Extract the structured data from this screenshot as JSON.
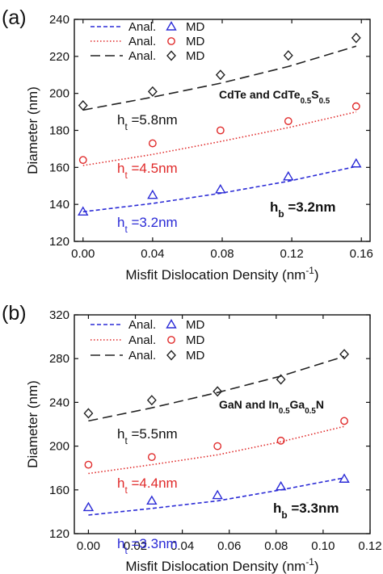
{
  "chart_data": [
    {
      "panel_label": "(a)",
      "type": "scatter",
      "xlabel": "Misfit Dislocation Density (nm",
      "xlabel_sup": "-1",
      "xlabel_end": ")",
      "ylabel": "Diameter (nm)",
      "xlim": [
        -0.005,
        0.165
      ],
      "ylim": [
        120,
        240
      ],
      "xticks": [
        0,
        0.04,
        0.08,
        0.12,
        0.16
      ],
      "xtick_labels": [
        "0.00",
        "0.04",
        "0.08",
        "0.12",
        "0.16"
      ],
      "yticks": [
        120,
        140,
        160,
        180,
        200,
        220,
        240
      ],
      "ytick_labels": [
        "120",
        "140",
        "160",
        "180",
        "200",
        "220",
        "240"
      ],
      "legend": [
        {
          "line_label": "Anal.",
          "marker_label": "MD",
          "color": "#2b2bd6",
          "dash": "5,3",
          "marker": "triangle"
        },
        {
          "line_label": "Anal.",
          "marker_label": "MD",
          "color": "#e02a2a",
          "dash": "1.5,2.5",
          "marker": "circle"
        },
        {
          "line_label": "Anal.",
          "marker_label": "MD",
          "color": "#222222",
          "dash": "12,6",
          "marker": "diamond"
        }
      ],
      "material": {
        "a": "CdTe and CdTe",
        "b": "0.5",
        "c": "S",
        "d": "0.5"
      },
      "hb": {
        "main": "h",
        "sub": "b",
        "rest": " =3.2nm"
      },
      "series": [
        {
          "color": "#222222",
          "dash": "12,6",
          "marker": "diamond",
          "ht_main": "h",
          "ht_sub": "t",
          "ht_rest": " =5.8nm",
          "x": [
            0,
            0.04,
            0.079,
            0.118,
            0.157
          ],
          "md": [
            193.5,
            201,
            210,
            220.5,
            230
          ],
          "anal_x": [
            0,
            0.04,
            0.079,
            0.118,
            0.157
          ],
          "anal_y": [
            191,
            198,
            205.5,
            214.5,
            225.5
          ]
        },
        {
          "color": "#e02a2a",
          "dash": "1.5,2.5",
          "marker": "circle",
          "ht_main": "h",
          "ht_sub": "t",
          "ht_rest": " =4.5nm",
          "x": [
            0,
            0.04,
            0.079,
            0.118,
            0.157
          ],
          "md": [
            164,
            173,
            180,
            185,
            193
          ],
          "anal_x": [
            0,
            0.04,
            0.079,
            0.118,
            0.157
          ],
          "anal_y": [
            161,
            167,
            174,
            181.5,
            190
          ]
        },
        {
          "color": "#2b2bd6",
          "dash": "5,3",
          "marker": "triangle",
          "ht_main": "h",
          "ht_sub": "t",
          "ht_rest": " =3.2nm",
          "x": [
            0,
            0.04,
            0.079,
            0.118,
            0.157
          ],
          "md": [
            136,
            145,
            148,
            155,
            162
          ],
          "anal_x": [
            0,
            0.04,
            0.079,
            0.118,
            0.157
          ],
          "anal_y": [
            136,
            140.5,
            146,
            152.5,
            160.5
          ]
        }
      ]
    },
    {
      "panel_label": "(b)",
      "type": "scatter",
      "xlabel": "Misfit Dislocation Density (nm",
      "xlabel_sup": "-1",
      "xlabel_end": ")",
      "ylabel": "Diameter (nm)",
      "xlim": [
        -0.006,
        0.12
      ],
      "ylim": [
        120,
        320
      ],
      "xticks": [
        0,
        0.02,
        0.04,
        0.06,
        0.08,
        0.1,
        0.12
      ],
      "xtick_labels": [
        "0.00",
        "0.02",
        "0.04",
        "0.06",
        "0.08",
        "0.10",
        "0.12"
      ],
      "yticks": [
        120,
        160,
        200,
        240,
        280,
        320
      ],
      "ytick_labels": [
        "120",
        "160",
        "200",
        "240",
        "280",
        "320"
      ],
      "legend": [
        {
          "line_label": "Anal.",
          "marker_label": "MD",
          "color": "#2b2bd6",
          "dash": "5,3",
          "marker": "triangle"
        },
        {
          "line_label": "Anal.",
          "marker_label": "MD",
          "color": "#e02a2a",
          "dash": "1.5,2.5",
          "marker": "circle"
        },
        {
          "line_label": "Anal.",
          "marker_label": "MD",
          "color": "#222222",
          "dash": "12,6",
          "marker": "diamond"
        }
      ],
      "material": {
        "a": "GaN and In",
        "b": "0.5",
        "c": "Ga",
        "d": "0.5",
        "e": "N"
      },
      "hb": {
        "main": "h",
        "sub": "b",
        "rest": " =3.3nm"
      },
      "series": [
        {
          "color": "#222222",
          "dash": "12,6",
          "marker": "diamond",
          "ht_main": "h",
          "ht_sub": "t",
          "ht_rest": " =5.5nm",
          "x": [
            0,
            0.027,
            0.055,
            0.082,
            0.109
          ],
          "md": [
            230,
            242,
            250,
            261,
            284
          ],
          "anal_x": [
            0,
            0.027,
            0.055,
            0.082,
            0.109
          ],
          "anal_y": [
            223,
            235,
            249,
            264,
            282
          ]
        },
        {
          "color": "#e02a2a",
          "dash": "1.5,2.5",
          "marker": "circle",
          "ht_main": "h",
          "ht_sub": "t",
          "ht_rest": " =4.4nm",
          "x": [
            0,
            0.027,
            0.055,
            0.082,
            0.109
          ],
          "md": [
            183,
            190,
            200,
            205,
            223
          ],
          "anal_x": [
            0,
            0.027,
            0.055,
            0.082,
            0.109
          ],
          "anal_y": [
            175,
            183,
            192,
            204,
            218
          ]
        },
        {
          "color": "#2b2bd6",
          "dash": "5,3",
          "marker": "triangle",
          "ht_main": "h",
          "ht_sub": "t",
          "ht_rest": " =3.3nm",
          "x": [
            0,
            0.027,
            0.055,
            0.082,
            0.109
          ],
          "md": [
            144,
            150,
            155,
            163,
            170
          ],
          "anal_x": [
            0,
            0.027,
            0.055,
            0.082,
            0.109
          ],
          "anal_y": [
            137,
            143,
            150,
            160,
            171
          ]
        }
      ]
    }
  ]
}
